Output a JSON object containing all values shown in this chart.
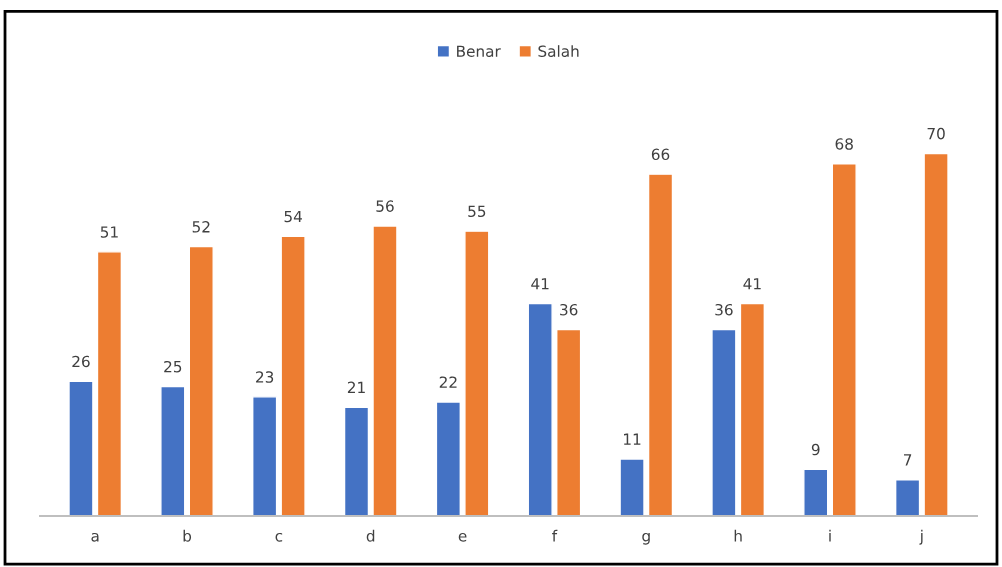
{
  "chart_data": {
    "type": "bar",
    "categories": [
      "a",
      "b",
      "c",
      "d",
      "e",
      "f",
      "g",
      "h",
      "i",
      "j"
    ],
    "series": [
      {
        "name": "Benar",
        "color": "#4472c4",
        "values": [
          26,
          25,
          23,
          21,
          22,
          41,
          11,
          36,
          9,
          7
        ]
      },
      {
        "name": "Salah",
        "color": "#ed7d31",
        "values": [
          51,
          52,
          54,
          56,
          55,
          36,
          66,
          41,
          68,
          70
        ]
      }
    ],
    "data_labels": true,
    "legend": "top",
    "grid": false
  }
}
